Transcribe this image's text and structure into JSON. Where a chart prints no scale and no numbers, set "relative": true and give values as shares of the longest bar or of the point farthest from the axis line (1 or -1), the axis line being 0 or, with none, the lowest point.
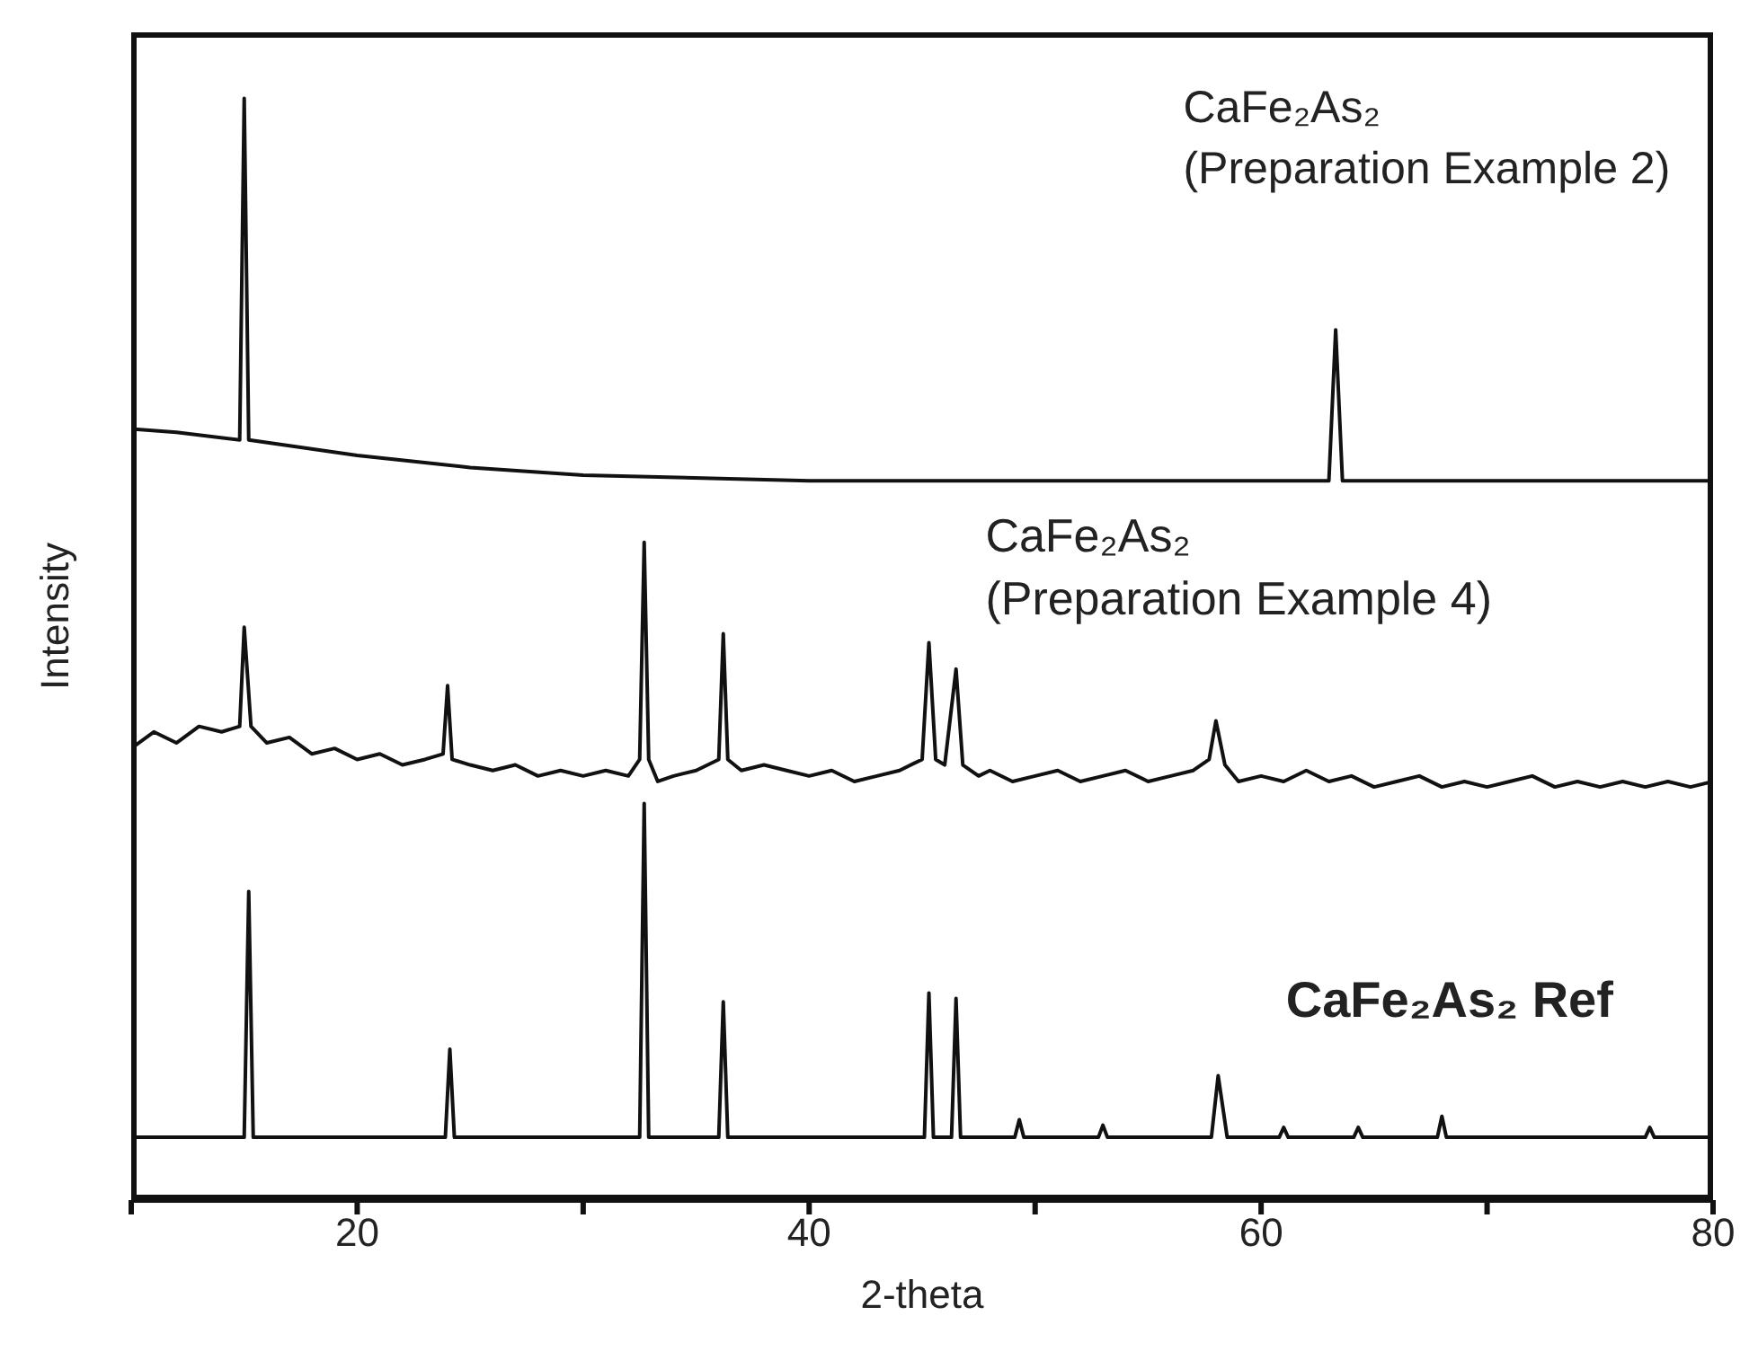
{
  "chart_data": {
    "type": "line",
    "xlabel": "2-theta",
    "ylabel": "Intensity",
    "relative": true,
    "tick_labels": "x",
    "marker": "none",
    "line_style": "solid",
    "xlim": [
      10,
      80
    ],
    "xticks": [
      {
        "value": 10,
        "label": null
      },
      20,
      {
        "value": 30,
        "label": null
      },
      40,
      {
        "value": 50,
        "label": null
      },
      60,
      {
        "value": 70,
        "label": null
      },
      80
    ],
    "annotations": [
      "CaFe₂As₂\n(Preparation Example 2)",
      "CaFe₂As₂\n(Preparation Example 4)",
      "CaFe₂As₂ Ref"
    ],
    "series": [
      {
        "color": "#111111",
        "x": [
          10,
          12,
          14.8,
          15,
          15.2,
          20,
          25,
          30,
          40,
          50,
          63,
          63.3,
          63.6,
          80
        ],
        "values": [
          0.7,
          0.697,
          0.69,
          1.0,
          0.69,
          0.676,
          0.665,
          0.658,
          0.653,
          0.653,
          0.653,
          0.79,
          0.653,
          0.653
        ]
      },
      {
        "color": "#111111",
        "x": [
          10,
          11,
          12,
          13,
          14,
          14.8,
          15,
          15.3,
          16,
          17,
          18,
          19,
          20,
          21,
          22,
          23,
          23.8,
          24,
          24.2,
          25,
          26,
          27,
          28,
          29,
          30,
          31,
          32,
          32.5,
          32.7,
          32.9,
          33.3,
          34,
          35,
          36,
          36.2,
          36.4,
          37,
          38,
          39,
          40,
          41,
          42,
          43,
          44,
          45,
          45.3,
          45.6,
          46,
          46.5,
          46.8,
          47.5,
          48,
          49,
          50,
          51,
          52,
          53,
          54,
          55,
          56,
          57,
          57.7,
          58,
          58.4,
          59,
          60,
          61,
          62,
          63,
          64,
          65,
          66,
          67,
          68,
          69,
          70,
          71,
          72,
          73,
          74,
          75,
          76,
          77,
          78,
          79,
          80
        ],
        "values": [
          0.41,
          0.425,
          0.415,
          0.43,
          0.425,
          0.43,
          0.52,
          0.43,
          0.415,
          0.42,
          0.405,
          0.41,
          0.4,
          0.405,
          0.395,
          0.4,
          0.405,
          0.467,
          0.4,
          0.395,
          0.39,
          0.395,
          0.385,
          0.39,
          0.385,
          0.39,
          0.385,
          0.4,
          0.597,
          0.4,
          0.38,
          0.385,
          0.39,
          0.4,
          0.514,
          0.4,
          0.39,
          0.395,
          0.39,
          0.385,
          0.39,
          0.38,
          0.385,
          0.39,
          0.4,
          0.506,
          0.4,
          0.395,
          0.482,
          0.395,
          0.385,
          0.39,
          0.38,
          0.385,
          0.39,
          0.38,
          0.385,
          0.39,
          0.38,
          0.385,
          0.39,
          0.4,
          0.435,
          0.395,
          0.38,
          0.385,
          0.38,
          0.39,
          0.38,
          0.385,
          0.375,
          0.38,
          0.385,
          0.375,
          0.38,
          0.375,
          0.38,
          0.385,
          0.375,
          0.38,
          0.375,
          0.38,
          0.375,
          0.38,
          0.375,
          0.38
        ]
      },
      {
        "color": "#111111",
        "x": [
          10,
          15,
          15.2,
          15.4,
          23.9,
          24.1,
          24.3,
          32.5,
          32.7,
          32.9,
          36.0,
          36.2,
          36.4,
          45.1,
          45.3,
          45.5,
          46.3,
          46.5,
          46.7,
          49.1,
          49.3,
          49.5,
          52.8,
          53,
          53.2,
          57.8,
          58.1,
          58.5,
          60.8,
          61,
          61.2,
          64.1,
          64.3,
          64.5,
          67.8,
          68,
          68.2,
          77,
          77.2,
          77.4,
          80
        ],
        "values": [
          0.057,
          0.057,
          0.28,
          0.057,
          0.057,
          0.137,
          0.057,
          0.057,
          0.36,
          0.057,
          0.057,
          0.18,
          0.057,
          0.057,
          0.188,
          0.057,
          0.057,
          0.183,
          0.057,
          0.057,
          0.073,
          0.057,
          0.057,
          0.068,
          0.057,
          0.057,
          0.113,
          0.057,
          0.057,
          0.066,
          0.057,
          0.057,
          0.066,
          0.057,
          0.057,
          0.076,
          0.057,
          0.057,
          0.066,
          0.057,
          0.057
        ]
      }
    ]
  }
}
